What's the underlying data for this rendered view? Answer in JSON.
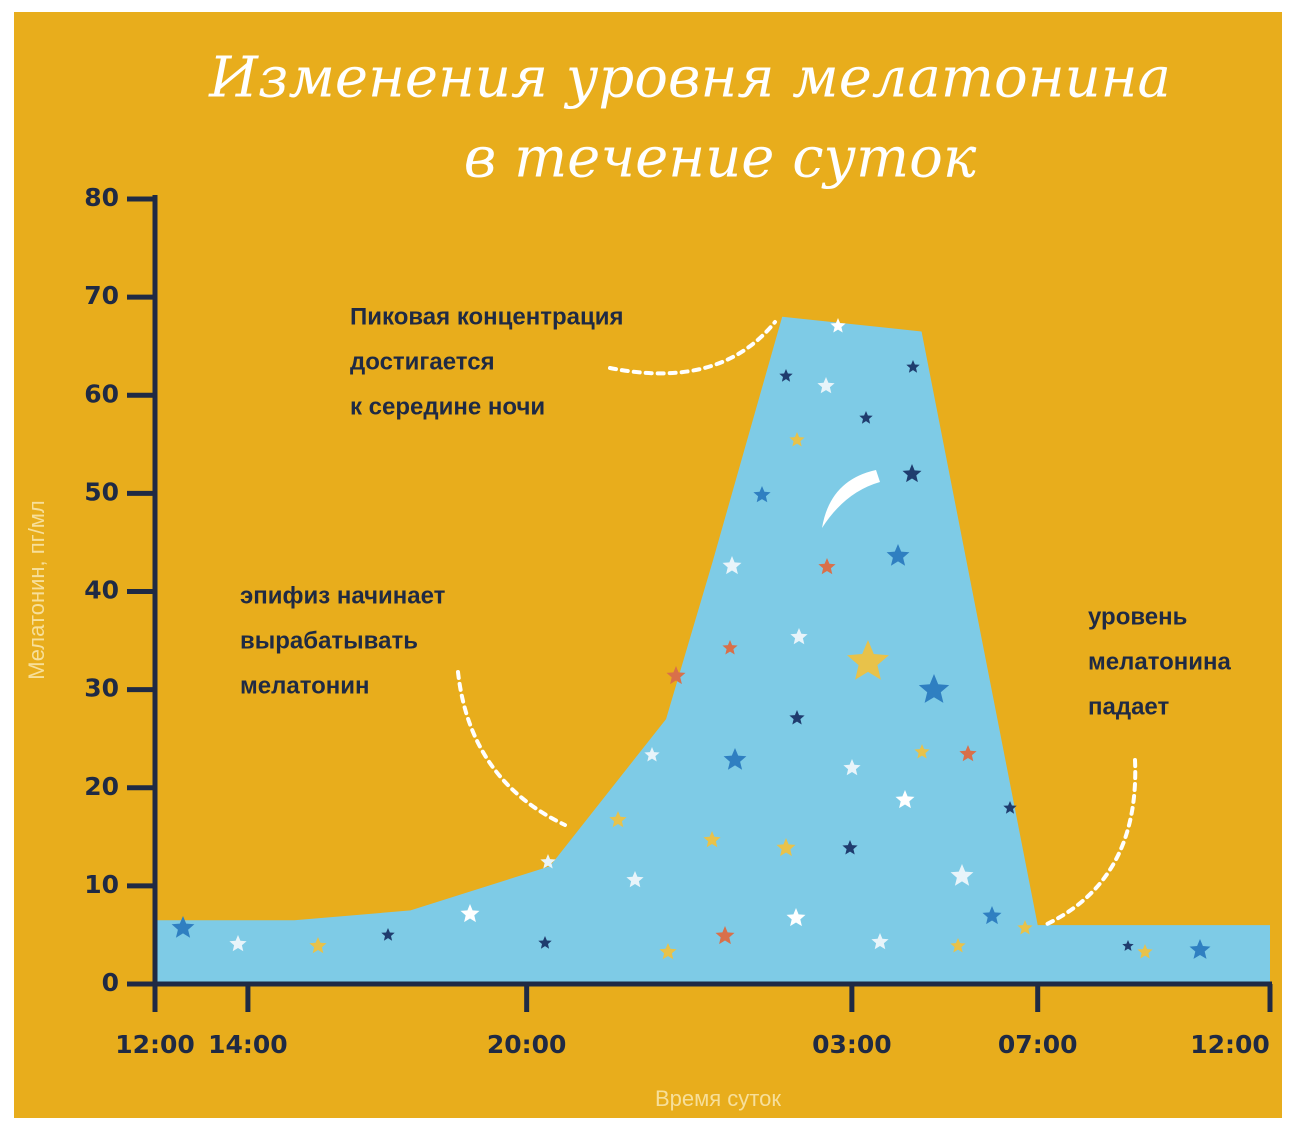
{
  "chart_data": {
    "type": "area",
    "title": [
      "Изменения уровня мелатонина",
      "в течение суток"
    ],
    "y_label": "Мелатонин, пг/мл",
    "x_label": "Время суток",
    "x": [
      0,
      3,
      5.5,
      8.5,
      11,
      12,
      13.5,
      16.5,
      19,
      24
    ],
    "values": [
      6.5,
      6.5,
      7.5,
      12,
      27,
      43,
      68,
      66.5,
      6,
      6
    ],
    "color": "#7ecbe6",
    "xlim": [
      0,
      24
    ],
    "xticks": [
      {
        "value": 0,
        "label": "12:00"
      },
      {
        "value": 2,
        "label": "14:00"
      },
      {
        "value": 8,
        "label": "20:00"
      },
      {
        "value": 15,
        "label": "03:00"
      },
      {
        "value": 19,
        "label": "07:00"
      },
      {
        "value": 24,
        "label": "12:00"
      }
    ],
    "ylim": [
      0,
      80
    ],
    "yticks": [
      0,
      10,
      20,
      30,
      40,
      50,
      60,
      70,
      80
    ],
    "annotations": [
      {
        "lines": [
          "Пиковая концентрация",
          "достигается",
          "к середине ночи"
        ]
      },
      {
        "lines": [
          "эпифиз начинает",
          "вырабатывать",
          "мелатонин"
        ]
      },
      {
        "lines": [
          "уровень",
          "мелатонина",
          "падает"
        ]
      }
    ]
  }
}
